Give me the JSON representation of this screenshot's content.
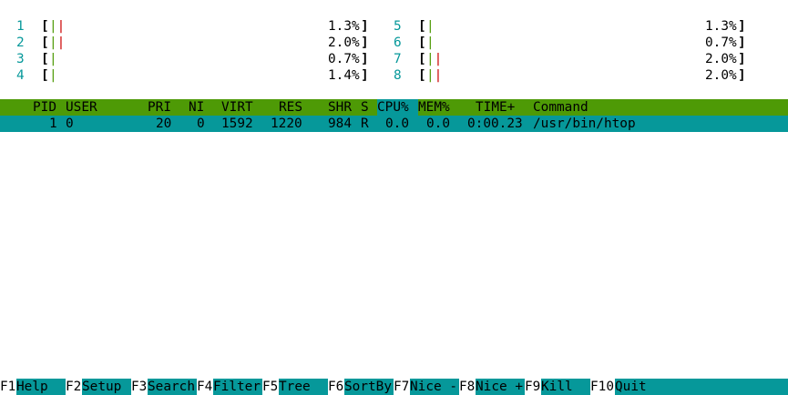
{
  "cpu_meters": [
    {
      "id": "1",
      "percent": "1.3%",
      "bars": [
        "g",
        "r"
      ]
    },
    {
      "id": "2",
      "percent": "2.0%",
      "bars": [
        "g",
        "r"
      ]
    },
    {
      "id": "3",
      "percent": "0.7%",
      "bars": [
        "g"
      ]
    },
    {
      "id": "4",
      "percent": "1.4%",
      "bars": [
        "g"
      ]
    },
    {
      "id": "5",
      "percent": "1.3%",
      "bars": [
        "g"
      ]
    },
    {
      "id": "6",
      "percent": "0.7%",
      "bars": [
        "g"
      ]
    },
    {
      "id": "7",
      "percent": "2.0%",
      "bars": [
        "g",
        "r"
      ]
    },
    {
      "id": "8",
      "percent": "2.0%",
      "bars": [
        "g",
        "r"
      ]
    }
  ],
  "bracket_open": "[",
  "bracket_close": "]",
  "columns": {
    "pid": "PID",
    "user": "USER",
    "pri": "PRI",
    "ni": "NI",
    "virt": "VIRT",
    "res": "RES",
    "shr": "SHR",
    "s": "S",
    "cpu": "CPU%",
    "mem": "MEM%",
    "time": "TIME+",
    "command": "Command"
  },
  "processes": [
    {
      "pid": "1",
      "user": "0",
      "pri": "20",
      "ni": "0",
      "virt": "1592",
      "res": "1220",
      "shr": "984",
      "s": "R",
      "cpu": "0.0",
      "mem": "0.0",
      "time": "0:00.23",
      "command": "/usr/bin/htop"
    }
  ],
  "function_bar": [
    {
      "key": "F1",
      "label": "Help  "
    },
    {
      "key": "F2",
      "label": "Setup "
    },
    {
      "key": "F3",
      "label": "Search"
    },
    {
      "key": "F4",
      "label": "Filter"
    },
    {
      "key": "F5",
      "label": "Tree  "
    },
    {
      "key": "F6",
      "label": "SortBy"
    },
    {
      "key": "F7",
      "label": "Nice -"
    },
    {
      "key": "F8",
      "label": "Nice +"
    },
    {
      "key": "F9",
      "label": "Kill  "
    },
    {
      "key": "F10",
      "label": "Quit"
    }
  ],
  "colors": {
    "cyan": "#06989a",
    "green": "#4e9a06",
    "red": "#cc0000",
    "background": "#ffffff"
  }
}
